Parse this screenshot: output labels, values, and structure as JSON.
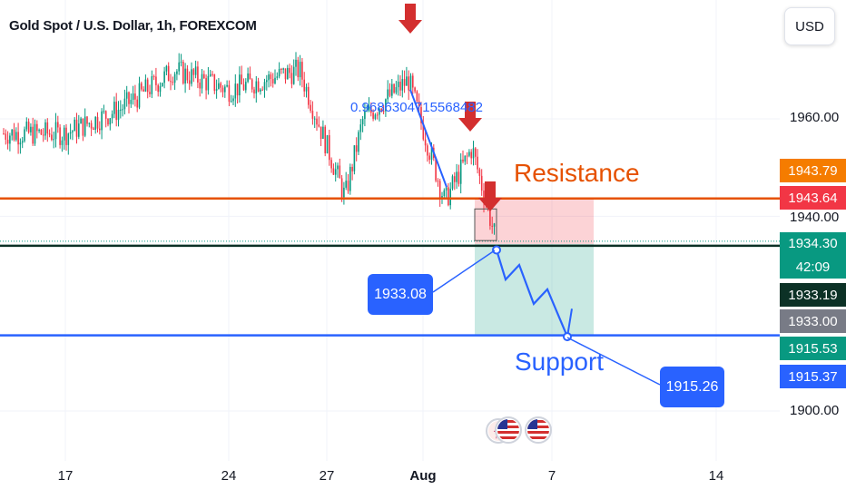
{
  "header": {
    "title": "Gold Spot / U.S. Dollar, 1h, FOREXCOM"
  },
  "currency_button": {
    "label": "USD"
  },
  "y_axis": {
    "ticks": [
      "1960.00",
      "1940.00",
      "1900.00"
    ]
  },
  "price_tags": [
    {
      "value": "1943.79",
      "color": "#f57c00"
    },
    {
      "value": "1943.64",
      "color": "#f23645"
    },
    {
      "value": "1934.30",
      "color": "#089981"
    },
    {
      "value": "42:09",
      "color": "#089981"
    },
    {
      "value": "1933.19",
      "color": "#0c3126"
    },
    {
      "value": "1933.00",
      "color": "#787b86"
    },
    {
      "value": "1915.53",
      "color": "#089981"
    },
    {
      "value": "1915.37",
      "color": "#2962ff"
    }
  ],
  "x_axis": {
    "ticks": [
      "17",
      "24",
      "27",
      "Aug",
      "7",
      "14"
    ]
  },
  "annotations": {
    "ratio_text": "0.9686304715568482",
    "resistance_label": "Resistance",
    "support_label": "Support",
    "callout_entry": "1933.08",
    "callout_target": "1915.26"
  },
  "colors": {
    "up": "#089981",
    "down": "#f23645",
    "resistance": "#e65100",
    "support": "#2962ff",
    "current_line": "#0c3126",
    "arrow": "#d32f2f"
  },
  "chart_data": {
    "type": "candlestick",
    "title": "Gold Spot / U.S. Dollar, 1h, FOREXCOM",
    "x_ticks": [
      "17",
      "24",
      "27",
      "Aug",
      "7",
      "14"
    ],
    "ylim": [
      1895,
      1975
    ],
    "resistance_level": 1943.64,
    "support_level": 1915.53,
    "current_price": 1934.3,
    "close_path": [
      {
        "x": "17",
        "y": 1957
      },
      {
        "x": "19",
        "y": 1962
      },
      {
        "x": "21",
        "y": 1970
      },
      {
        "x": "24",
        "y": 1966
      },
      {
        "x": "26",
        "y": 1970
      },
      {
        "x": "27",
        "y": 1944
      },
      {
        "x": "28",
        "y": 1960
      },
      {
        "x": "31",
        "y": 1968
      },
      {
        "x": "Aug 1",
        "y": 1943
      },
      {
        "x": "Aug 2",
        "y": 1954
      },
      {
        "x": "Aug 3",
        "y": 1936
      },
      {
        "x": "Aug 3",
        "y": 1934
      }
    ],
    "projection": [
      1933.08,
      1927,
      1930,
      1922,
      1925,
      1915.26
    ],
    "trade_box": {
      "entry": 1934.3,
      "stop": 1943.64,
      "target": 1915.53
    }
  }
}
